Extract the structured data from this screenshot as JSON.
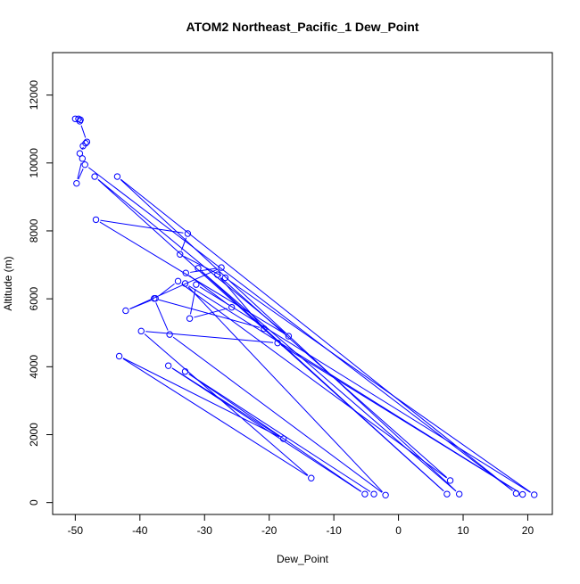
{
  "chart_data": {
    "type": "line",
    "title": "ATOM2 Northeast_Pacific_1 Dew_Point",
    "xlabel": "Dew_Point",
    "ylabel": "Altitude (m)",
    "xlim": [
      -53.5,
      23.8
    ],
    "ylim": [
      -350,
      13250
    ],
    "xticks": [
      -50,
      -40,
      -30,
      -20,
      -10,
      0,
      10,
      20
    ],
    "yticks": [
      0,
      2000,
      4000,
      6000,
      8000,
      10000,
      12000
    ],
    "series_color": "#0000ff",
    "grid": false,
    "legend": "none",
    "points": [
      {
        "x": -50.0,
        "y": 11300
      },
      {
        "x": -49.5,
        "y": 11300
      },
      {
        "x": -49.2,
        "y": 11270
      },
      {
        "x": -49.3,
        "y": 11230
      },
      {
        "x": -48.2,
        "y": 10620
      },
      {
        "x": -48.8,
        "y": 10500
      },
      {
        "x": -48.4,
        "y": 10580
      },
      {
        "x": -49.3,
        "y": 10280
      },
      {
        "x": -48.9,
        "y": 10130
      },
      {
        "x": -49.8,
        "y": 9400
      },
      {
        "x": -48.5,
        "y": 9950
      },
      {
        "x": 18.2,
        "y": 270
      },
      {
        "x": -43.5,
        "y": 9600
      },
      {
        "x": 9.4,
        "y": 250
      },
      {
        "x": -31.0,
        "y": 6900
      },
      {
        "x": 7.5,
        "y": 250
      },
      {
        "x": -47.0,
        "y": 9600
      },
      {
        "x": -17.0,
        "y": 4900
      },
      {
        "x": -46.8,
        "y": 8330
      },
      {
        "x": -32.6,
        "y": 7920
      },
      {
        "x": -33.8,
        "y": 7310
      },
      {
        "x": -26.8,
        "y": 6620
      },
      {
        "x": 21.0,
        "y": 230
      },
      {
        "x": -31.3,
        "y": 6420
      },
      {
        "x": -32.3,
        "y": 5420
      },
      {
        "x": -25.8,
        "y": 5750
      },
      {
        "x": -32.9,
        "y": 6760
      },
      {
        "x": -27.4,
        "y": 6920
      },
      {
        "x": -42.2,
        "y": 5650
      },
      {
        "x": -37.6,
        "y": 6010
      },
      {
        "x": -34.1,
        "y": 6520
      },
      {
        "x": 8.0,
        "y": 650
      },
      {
        "x": -28.0,
        "y": 6710
      },
      {
        "x": -20.8,
        "y": 5120
      },
      {
        "x": -37.8,
        "y": 6010
      },
      {
        "x": -35.4,
        "y": 4950
      },
      {
        "x": -2.0,
        "y": 220
      },
      {
        "x": -33.0,
        "y": 6450
      },
      {
        "x": 19.2,
        "y": 240
      },
      {
        "x": -18.7,
        "y": 4700
      },
      {
        "x": -39.8,
        "y": 5050
      },
      {
        "x": -13.5,
        "y": 720
      },
      {
        "x": -43.2,
        "y": 4310
      },
      {
        "x": -17.8,
        "y": 1880
      },
      {
        "x": -35.6,
        "y": 4030
      },
      {
        "x": -5.2,
        "y": 250
      },
      {
        "x": -33.0,
        "y": 3860
      },
      {
        "x": -3.8,
        "y": 250
      }
    ]
  }
}
